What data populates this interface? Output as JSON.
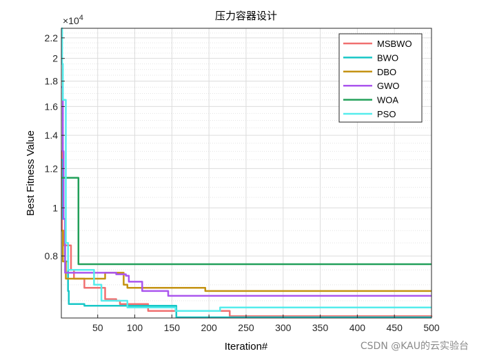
{
  "chart_data": {
    "type": "line",
    "title": "压力容器设计",
    "xlabel": "Iteration#",
    "ylabel": "Best Fitness Value",
    "y_exponent_label": "×10",
    "y_exponent": "4",
    "xlim": [
      1,
      500
    ],
    "ylim": [
      6000,
      23000
    ],
    "y_scale": "log",
    "grid": true,
    "legend_position": "top-right",
    "x_ticks": [
      50,
      100,
      150,
      200,
      250,
      300,
      350,
      400,
      450,
      500
    ],
    "y_ticks": [
      {
        "value": 8000,
        "label": "0.8"
      },
      {
        "value": 10000,
        "label": "1"
      },
      {
        "value": 12000,
        "label": "1.2"
      },
      {
        "value": 14000,
        "label": "1.4"
      },
      {
        "value": 16000,
        "label": "1.6"
      },
      {
        "value": 18000,
        "label": "1.8"
      },
      {
        "value": 20000,
        "label": "2"
      },
      {
        "value": 22000,
        "label": "2.2"
      }
    ],
    "series": [
      {
        "name": "MSBWO",
        "color": "#f07070",
        "points": [
          [
            1,
            13000
          ],
          [
            2,
            9000
          ],
          [
            4,
            8400
          ],
          [
            10,
            8400
          ],
          [
            14,
            7500
          ],
          [
            18,
            7200
          ],
          [
            28,
            7200
          ],
          [
            32,
            6900
          ],
          [
            50,
            6900
          ],
          [
            60,
            6550
          ],
          [
            75,
            6500
          ],
          [
            80,
            6400
          ],
          [
            115,
            6400
          ],
          [
            118,
            6200
          ],
          [
            225,
            6200
          ],
          [
            228,
            6050
          ],
          [
            500,
            6030
          ]
        ]
      },
      {
        "name": "BWO",
        "color": "#17c7c7",
        "points": [
          [
            1,
            12500
          ],
          [
            3,
            9500
          ],
          [
            6,
            7800
          ],
          [
            10,
            6800
          ],
          [
            11,
            6400
          ],
          [
            28,
            6400
          ],
          [
            32,
            6350
          ],
          [
            153,
            6350
          ],
          [
            156,
            6020
          ],
          [
            500,
            6020
          ]
        ]
      },
      {
        "name": "DBO",
        "color": "#c49212",
        "points": [
          [
            1,
            9000
          ],
          [
            3,
            7800
          ],
          [
            7,
            7200
          ],
          [
            40,
            7200
          ],
          [
            60,
            7400
          ],
          [
            82,
            7400
          ],
          [
            85,
            7000
          ],
          [
            90,
            6900
          ],
          [
            175,
            6900
          ],
          [
            178,
            6900
          ],
          [
            195,
            6800
          ],
          [
            500,
            6800
          ]
        ]
      },
      {
        "name": "GWO",
        "color": "#aa55ee",
        "points": [
          [
            1,
            17500
          ],
          [
            3,
            13000
          ],
          [
            4,
            9500
          ],
          [
            6,
            7400
          ],
          [
            75,
            7350
          ],
          [
            88,
            7300
          ],
          [
            92,
            7100
          ],
          [
            110,
            6800
          ],
          [
            140,
            6800
          ],
          [
            145,
            6650
          ],
          [
            500,
            6650
          ]
        ]
      },
      {
        "name": "WOA",
        "color": "#22a05a",
        "points": [
          [
            1,
            11500
          ],
          [
            22,
            11500
          ],
          [
            24,
            7700
          ],
          [
            500,
            7700
          ]
        ]
      },
      {
        "name": "PSO",
        "color": "#55ecec",
        "points": [
          [
            1,
            23000
          ],
          [
            2,
            19500
          ],
          [
            3,
            16500
          ],
          [
            5,
            16500
          ],
          [
            7,
            8500
          ],
          [
            10,
            7500
          ],
          [
            30,
            7500
          ],
          [
            45,
            7000
          ],
          [
            55,
            6500
          ],
          [
            85,
            6500
          ],
          [
            90,
            6300
          ],
          [
            150,
            6300
          ],
          [
            155,
            6200
          ],
          [
            185,
            6200
          ],
          [
            190,
            6200
          ],
          [
            210,
            6200
          ],
          [
            215,
            6300
          ],
          [
            500,
            6300
          ]
        ]
      }
    ]
  },
  "watermark": "CSDN @KAU的云实验台"
}
